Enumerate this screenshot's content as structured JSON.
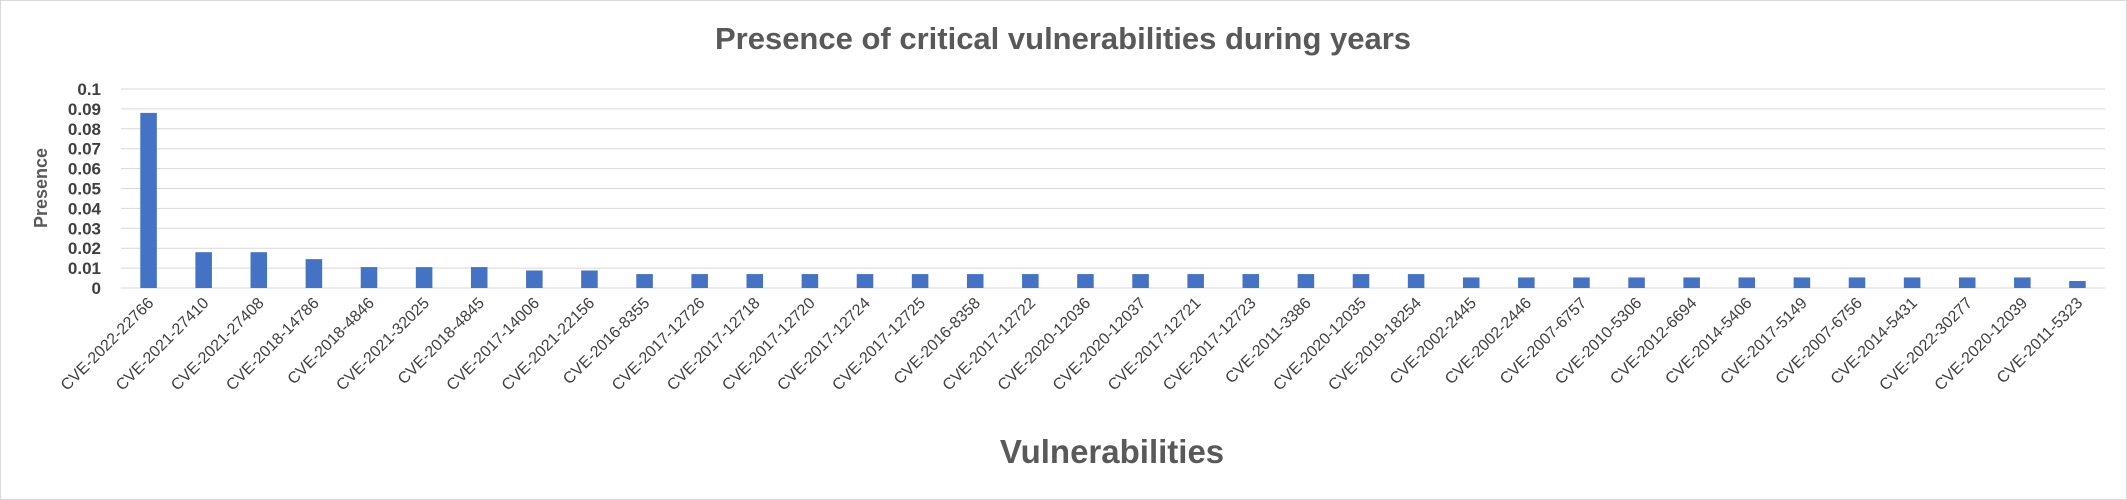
{
  "chart_data": {
    "type": "bar",
    "title": "Presence of critical vulnerabilities during years",
    "xlabel": "Vulnerabilities",
    "ylabel": "Presence",
    "ylim": [
      0,
      0.1
    ],
    "yticks": [
      "0",
      "0.01",
      "0.02",
      "0.03",
      "0.04",
      "0.05",
      "0.06",
      "0.07",
      "0.08",
      "0.09",
      "0.1"
    ],
    "grid": true,
    "bar_color": "#4472c4",
    "categories": [
      "CVE-2022-22766",
      "CVE-2021-27410",
      "CVE-2021-27408",
      "CVE-2018-14786",
      "CVE-2018-4846",
      "CVE-2021-32025",
      "CVE-2018-4845",
      "CVE-2017-14006",
      "CVE-2021-22156",
      "CVE-2016-8355",
      "CVE-2017-12726",
      "CVE-2017-12718",
      "CVE-2017-12720",
      "CVE-2017-12724",
      "CVE-2017-12725",
      "CVE-2016-8358",
      "CVE-2017-12722",
      "CVE-2020-12036",
      "CVE-2020-12037",
      "CVE-2017-12721",
      "CVE-2017-12723",
      "CVE-2011-3386",
      "CVE-2020-12035",
      "CVE-2019-18254",
      "CVE-2002-2445",
      "CVE-2002-2446",
      "CVE-2007-6757",
      "CVE-2010-5306",
      "CVE-2012-6694",
      "CVE-2014-5406",
      "CVE-2017-5149",
      "CVE-2007-6756",
      "CVE-2014-5431",
      "CVE-2022-30277",
      "CVE-2020-12039",
      "CVE-2011-5323"
    ],
    "values": [
      0.088,
      0.018,
      0.018,
      0.0145,
      0.0105,
      0.0105,
      0.0105,
      0.0088,
      0.0088,
      0.007,
      0.007,
      0.007,
      0.007,
      0.007,
      0.007,
      0.007,
      0.007,
      0.007,
      0.007,
      0.007,
      0.007,
      0.007,
      0.007,
      0.007,
      0.0053,
      0.0053,
      0.0053,
      0.0053,
      0.0053,
      0.0053,
      0.0053,
      0.0053,
      0.0053,
      0.0053,
      0.0053,
      0.0035
    ]
  }
}
